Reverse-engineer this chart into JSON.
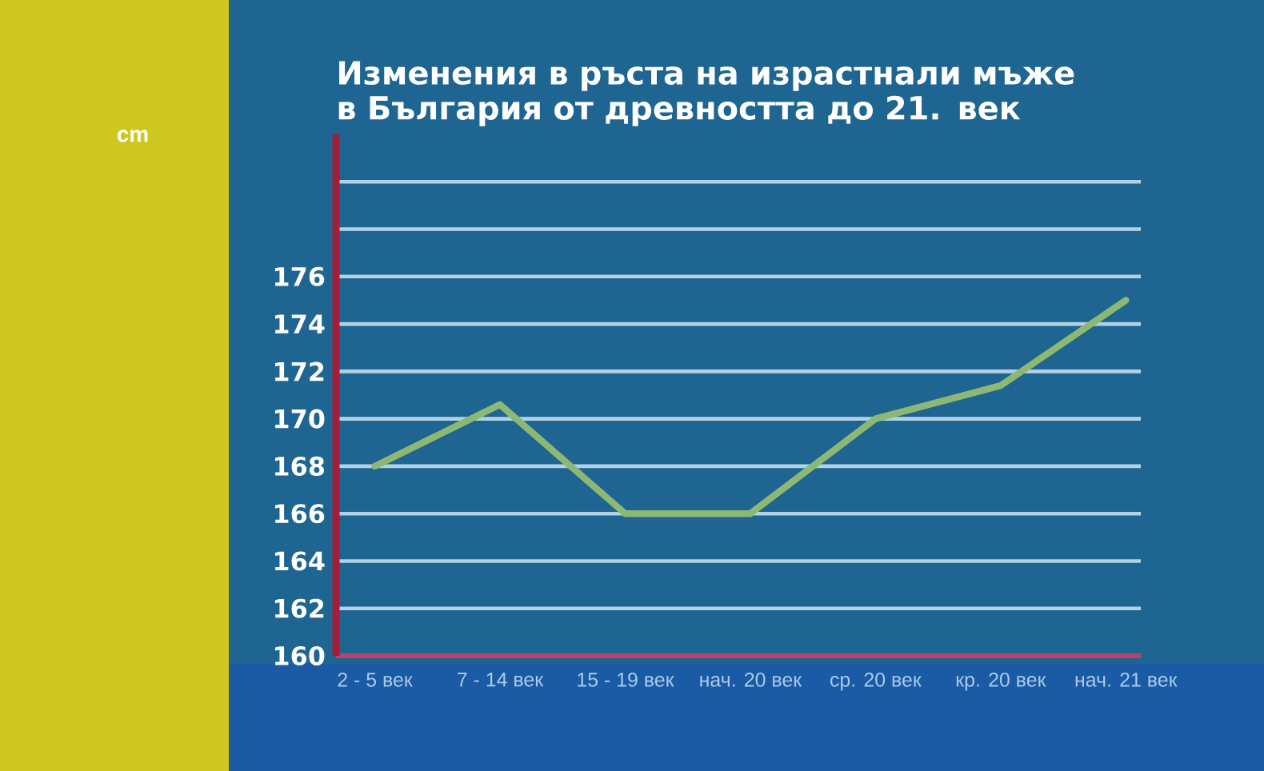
{
  "chart_data": {
    "type": "line",
    "title": "Изменения в ръста на израстнали мъже в България от древността до 21. век",
    "annotations": [
      "cm"
    ],
    "categories": [
      "2 - 5 век",
      "7 - 14 век",
      "15 - 19 век",
      "нач. 20 век",
      "ср. 20 век",
      "кр. 20 век",
      "нач. 21 век"
    ],
    "series": [
      {
        "color": "#8db873",
        "values": [
          168,
          170.6,
          166,
          166,
          170,
          171.4,
          175
        ]
      }
    ],
    "ylim": [
      160,
      182
    ],
    "yticks": [
      160,
      162,
      164,
      166,
      168,
      170,
      172,
      174,
      176,
      {
        "value": 178,
        "label": null
      },
      {
        "value": 180,
        "label": null
      }
    ],
    "grid": "y",
    "marker": "none",
    "line_style": "solid"
  }
}
